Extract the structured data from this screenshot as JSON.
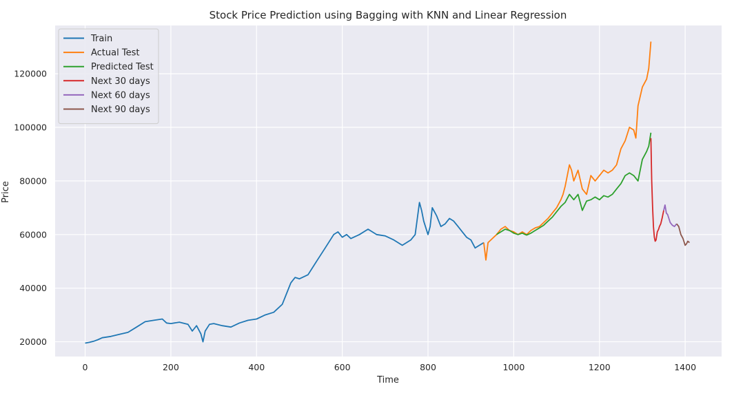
{
  "chart_data": {
    "type": "line",
    "title": "Stock Price Prediction using Bagging with KNN and Linear Regression",
    "xlabel": "Time",
    "ylabel": "Price",
    "xlim": [
      -70,
      1485
    ],
    "ylim": [
      14500,
      138000
    ],
    "xticks": [
      0,
      200,
      400,
      600,
      800,
      1000,
      1200,
      1400
    ],
    "yticks": [
      20000,
      40000,
      60000,
      80000,
      100000,
      120000
    ],
    "grid": true,
    "legend_position": "top-left",
    "background": "#eaeaf2",
    "series": [
      {
        "name": "Train",
        "color": "#1f77b4",
        "x": [
          0,
          10,
          20,
          30,
          40,
          60,
          80,
          100,
          120,
          140,
          160,
          180,
          190,
          200,
          220,
          240,
          250,
          260,
          270,
          275,
          280,
          290,
          300,
          320,
          340,
          360,
          380,
          400,
          420,
          440,
          460,
          470,
          480,
          490,
          500,
          520,
          540,
          560,
          580,
          590,
          600,
          610,
          620,
          640,
          660,
          680,
          700,
          720,
          740,
          760,
          770,
          780,
          785,
          790,
          800,
          805,
          810,
          820,
          830,
          840,
          850,
          860,
          870,
          880,
          890,
          900,
          910,
          920,
          930
        ],
        "y": [
          19500,
          19800,
          20200,
          20800,
          21500,
          22000,
          22800,
          23500,
          25500,
          27500,
          28000,
          28500,
          27000,
          26800,
          27300,
          26500,
          24000,
          26000,
          23000,
          20000,
          24000,
          26500,
          26800,
          26000,
          25500,
          27000,
          28000,
          28500,
          30000,
          31000,
          34000,
          38000,
          42000,
          44000,
          43500,
          45000,
          50000,
          55000,
          60000,
          61000,
          59000,
          60000,
          58500,
          60000,
          62000,
          60000,
          59500,
          58000,
          56000,
          58000,
          60000,
          72000,
          69000,
          65000,
          60000,
          63000,
          70000,
          67000,
          63000,
          64000,
          66000,
          65000,
          63000,
          61000,
          59000,
          58000,
          55000,
          56000,
          57000
        ]
      },
      {
        "name": "Actual Test",
        "color": "#ff7f0e",
        "x": [
          930,
          935,
          940,
          950,
          960,
          970,
          980,
          990,
          1000,
          1010,
          1020,
          1030,
          1040,
          1050,
          1060,
          1070,
          1080,
          1090,
          1100,
          1110,
          1115,
          1120,
          1130,
          1135,
          1140,
          1150,
          1160,
          1170,
          1180,
          1190,
          1200,
          1210,
          1220,
          1230,
          1240,
          1250,
          1260,
          1270,
          1280,
          1285,
          1290,
          1300,
          1310,
          1315,
          1320
        ],
        "y": [
          57000,
          50500,
          57000,
          58500,
          60000,
          62000,
          63000,
          61500,
          61000,
          60000,
          61000,
          60000,
          61500,
          62500,
          63000,
          64500,
          66000,
          68000,
          70000,
          73000,
          75000,
          78000,
          86000,
          84000,
          80000,
          84000,
          77000,
          75000,
          82000,
          80000,
          82000,
          84000,
          83000,
          84000,
          86000,
          92000,
          95000,
          100000,
          99000,
          96000,
          108000,
          115000,
          118000,
          122000,
          132000
        ]
      },
      {
        "name": "Predicted Test",
        "color": "#2ca02c",
        "x": [
          960,
          970,
          980,
          990,
          1000,
          1010,
          1020,
          1030,
          1040,
          1050,
          1060,
          1070,
          1080,
          1090,
          1100,
          1110,
          1120,
          1130,
          1140,
          1150,
          1160,
          1170,
          1180,
          1190,
          1200,
          1210,
          1220,
          1230,
          1240,
          1250,
          1260,
          1270,
          1280,
          1290,
          1300,
          1310,
          1315,
          1320
        ],
        "y": [
          60000,
          61000,
          62000,
          61500,
          60500,
          60000,
          60500,
          59800,
          60500,
          61500,
          62500,
          63500,
          65000,
          66500,
          68500,
          70500,
          72000,
          75000,
          73000,
          75000,
          69000,
          72500,
          73000,
          74000,
          73000,
          74500,
          74000,
          75000,
          77000,
          79000,
          82000,
          83000,
          82000,
          80000,
          88000,
          91000,
          93000,
          98000
        ]
      },
      {
        "name": "Next 30 days",
        "color": "#d62728",
        "x": [
          1320,
          1322,
          1324,
          1326,
          1328,
          1330,
          1332,
          1335,
          1338,
          1340,
          1343,
          1346,
          1350
        ],
        "y": [
          96000,
          80000,
          70000,
          63000,
          59000,
          57500,
          58000,
          61000,
          62000,
          63000,
          64000,
          66000,
          69000
        ]
      },
      {
        "name": "Next 60 days",
        "color": "#9467bd",
        "x": [
          1350,
          1353,
          1356,
          1359,
          1362,
          1365,
          1370,
          1375,
          1380
        ],
        "y": [
          69000,
          71000,
          68000,
          67500,
          66000,
          64500,
          63500,
          63000,
          64000
        ]
      },
      {
        "name": "Next 90 days",
        "color": "#8c564b",
        "x": [
          1380,
          1385,
          1390,
          1395,
          1400,
          1403,
          1406,
          1410
        ],
        "y": [
          64000,
          63000,
          60000,
          58500,
          56000,
          56500,
          57500,
          57000
        ]
      }
    ]
  }
}
